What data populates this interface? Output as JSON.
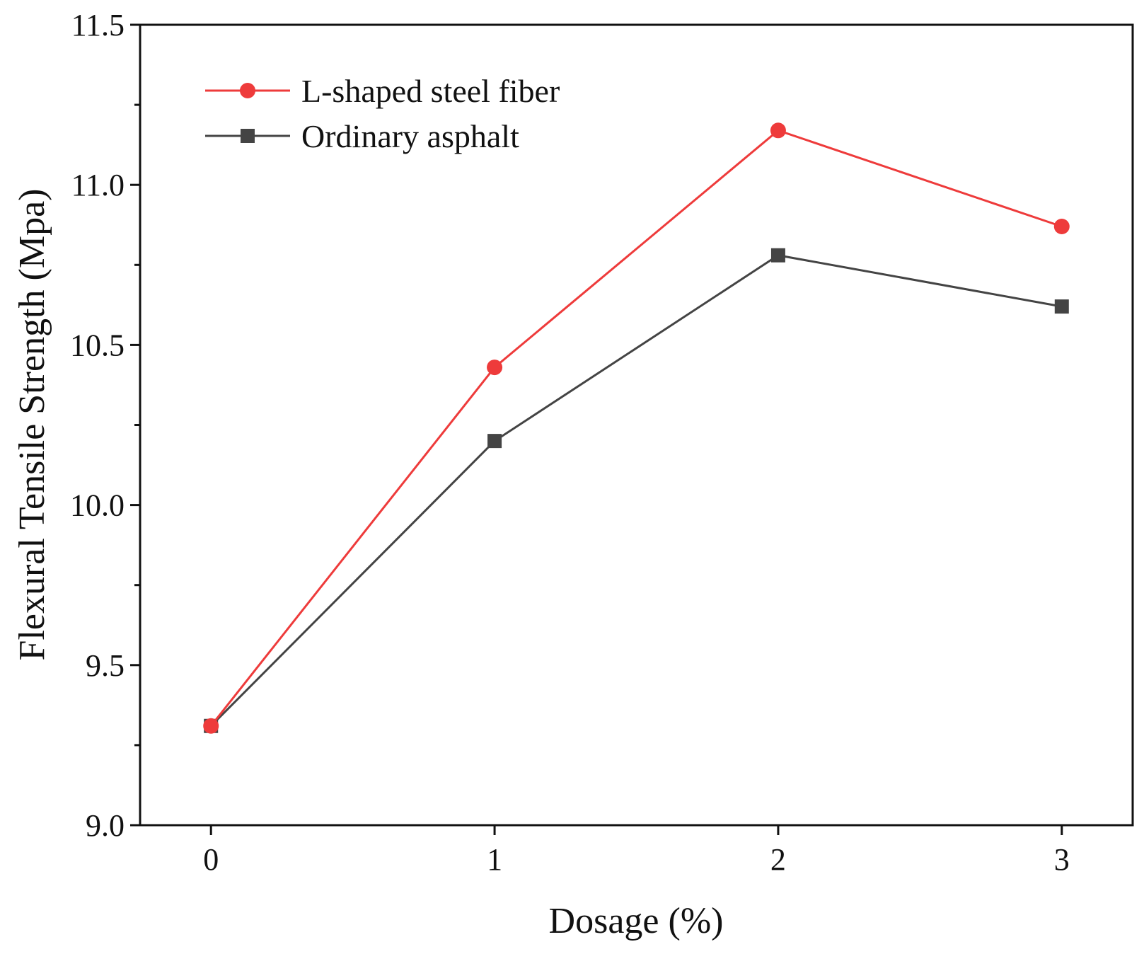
{
  "chart_data": {
    "type": "line",
    "xlabel": "Dosage (%)",
    "ylabel": "Flexural Tensile Strength (Mpa)",
    "x": [
      0,
      1,
      2,
      3
    ],
    "x_tick_labels": [
      "0",
      "1",
      "2",
      "3"
    ],
    "xlim": [
      -0.25,
      3.25
    ],
    "ylim": [
      9.0,
      11.5
    ],
    "y_ticks": [
      9.0,
      9.5,
      10.0,
      10.5,
      11.0,
      11.5
    ],
    "y_tick_labels": [
      "9.0",
      "9.5",
      "10.0",
      "10.5",
      "11.0",
      "11.5"
    ],
    "y_minor_step": 0.25,
    "grid": false,
    "legend_position": "top-left",
    "series": [
      {
        "name": "L-shaped steel fiber",
        "color": "#ee3b3b",
        "marker": "circle",
        "values": [
          9.31,
          10.43,
          11.17,
          10.87
        ]
      },
      {
        "name": "Ordinary asphalt",
        "color": "#444444",
        "marker": "square",
        "values": [
          9.31,
          10.2,
          10.78,
          10.62
        ]
      }
    ]
  }
}
